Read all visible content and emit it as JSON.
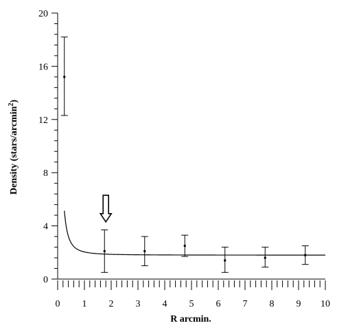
{
  "chart_data": {
    "type": "scatter",
    "xlabel": "R  arcmin.",
    "ylabel": "Density (stars/arcmin",
    "ylabel_sup": "2",
    "ylabel_close": ")",
    "xlim": [
      0,
      10
    ],
    "ylim": [
      0,
      20
    ],
    "x_ticks": [
      0,
      1,
      2,
      3,
      4,
      5,
      6,
      7,
      8,
      9,
      10
    ],
    "y_ticks": [
      0,
      4,
      8,
      12,
      16,
      20
    ],
    "x_minor_step": 0.2,
    "y_minor_step": 0.8,
    "points": [
      {
        "x": 0.25,
        "y": 15.2,
        "err_lo": 12.3,
        "err_hi": 18.2
      },
      {
        "x": 1.75,
        "y": 2.1,
        "err_lo": 0.5,
        "err_hi": 3.7
      },
      {
        "x": 3.25,
        "y": 2.1,
        "err_lo": 1.0,
        "err_hi": 3.2
      },
      {
        "x": 4.75,
        "y": 2.5,
        "err_lo": 1.7,
        "err_hi": 3.3
      },
      {
        "x": 6.25,
        "y": 1.4,
        "err_lo": 0.5,
        "err_hi": 2.4
      },
      {
        "x": 7.75,
        "y": 1.6,
        "err_lo": 0.9,
        "err_hi": 2.4
      },
      {
        "x": 9.25,
        "y": 1.8,
        "err_lo": 1.1,
        "err_hi": 2.5
      }
    ],
    "fit": {
      "model": "King profile",
      "background": 1.8,
      "f0": 24.2,
      "rc": 0.1
    },
    "annotation": {
      "type": "arrow-down",
      "x": 1.8,
      "y_tip": 4.3,
      "y_top": 6.3
    },
    "grid": false,
    "legend": "none"
  }
}
